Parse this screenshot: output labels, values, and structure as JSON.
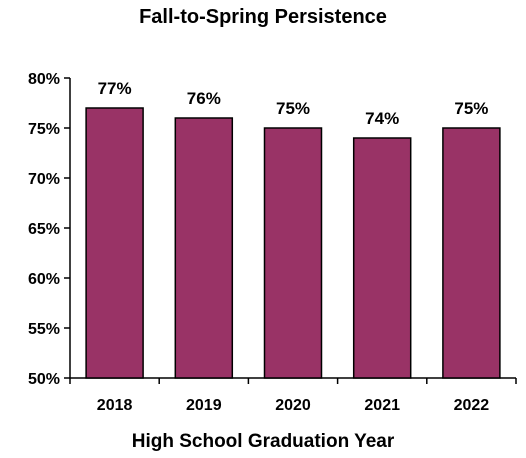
{
  "chart_data": {
    "type": "bar",
    "title": "Fall-to-Spring Persistence",
    "xlabel": "High School Graduation Year",
    "ylabel": "",
    "categories": [
      "2018",
      "2019",
      "2020",
      "2021",
      "2022"
    ],
    "values": [
      77,
      76,
      75,
      74,
      75
    ],
    "data_labels": [
      "77%",
      "76%",
      "75%",
      "74%",
      "75%"
    ],
    "ylim": [
      50,
      80
    ],
    "y_ticks": [
      50,
      55,
      60,
      65,
      70,
      75,
      80
    ],
    "y_tick_labels": [
      "50%",
      "55%",
      "60%",
      "65%",
      "70%",
      "75%",
      "80%"
    ],
    "bar_color": "#993366",
    "grid": false,
    "legend": "none"
  }
}
